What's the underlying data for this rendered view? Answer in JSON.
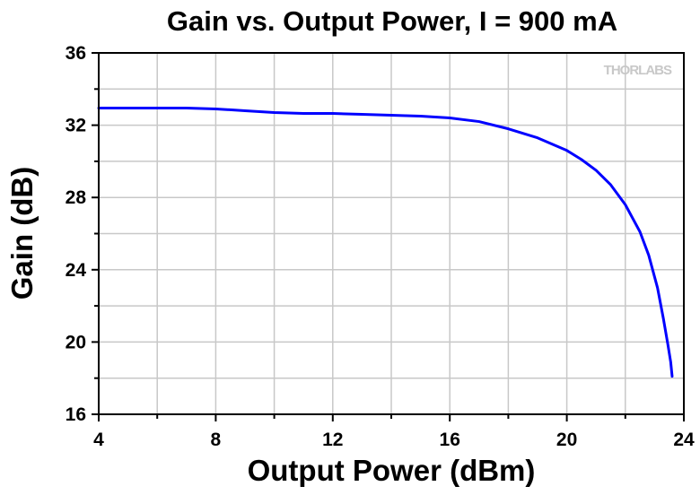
{
  "chart_data": {
    "type": "line",
    "title": "Gain vs. Output Power, I = 900 mA",
    "xlabel": "Output Power (dBm)",
    "ylabel": "Gain (dB)",
    "xlim": [
      4,
      24
    ],
    "ylim": [
      16,
      36
    ],
    "x_ticks": [
      4,
      8,
      12,
      16,
      20,
      24
    ],
    "y_ticks": [
      16,
      20,
      24,
      28,
      32,
      36
    ],
    "grid": true,
    "watermark": "THORLABS",
    "series": [
      {
        "color": "#0000ff",
        "x": [
          4.0,
          5.0,
          6.0,
          7.0,
          8.0,
          9.0,
          10.0,
          11.0,
          12.0,
          13.0,
          14.0,
          15.0,
          16.0,
          17.0,
          18.0,
          19.0,
          20.0,
          20.5,
          21.0,
          21.5,
          22.0,
          22.5,
          22.8,
          23.1,
          23.3,
          23.45,
          23.55,
          23.6
        ],
        "y": [
          32.95,
          32.95,
          32.95,
          32.95,
          32.9,
          32.8,
          32.7,
          32.65,
          32.65,
          32.6,
          32.55,
          32.5,
          32.4,
          32.2,
          31.8,
          31.3,
          30.6,
          30.1,
          29.5,
          28.7,
          27.6,
          26.1,
          24.8,
          23.0,
          21.3,
          19.9,
          18.9,
          18.1
        ]
      }
    ]
  }
}
